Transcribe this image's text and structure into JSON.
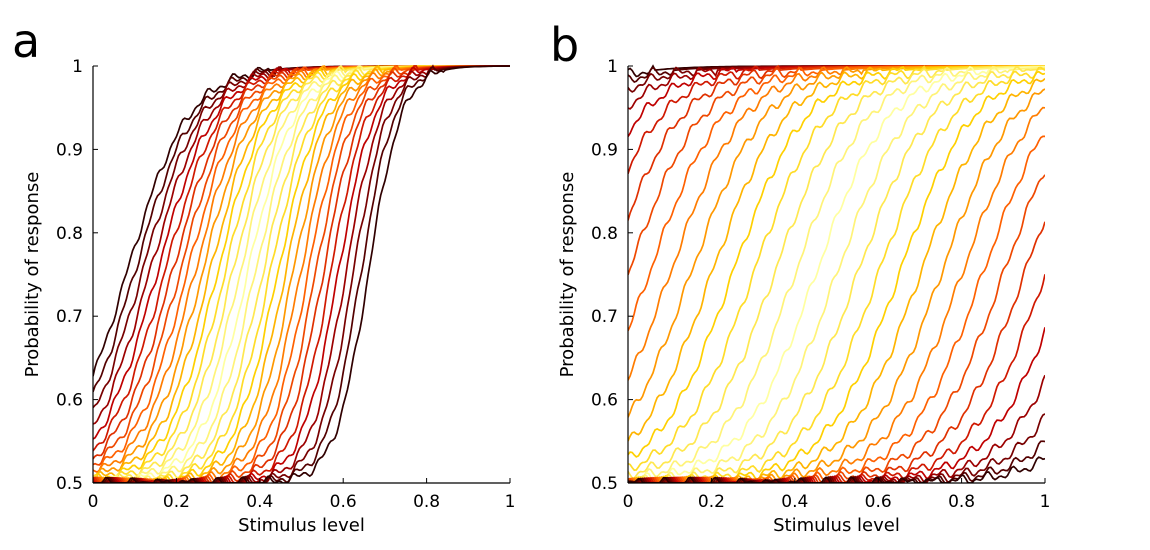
{
  "panels": [
    {
      "letter": "a"
    },
    {
      "letter": "b"
    }
  ],
  "chart_data": [
    {
      "type": "line",
      "panel": "a",
      "xlabel": "Stimulus level",
      "ylabel": "Probability of response",
      "xlim": [
        0,
        1
      ],
      "ylim": [
        0.5,
        1
      ],
      "xticks": [
        "0",
        "0.2",
        "0.4",
        "0.6",
        "0.8",
        "1"
      ],
      "yticks": [
        "0.5",
        "0.6",
        "0.7",
        "0.8",
        "0.9",
        "1"
      ],
      "grid": false,
      "legend": "none",
      "colormap": "hot",
      "colors": [
        "#300000",
        "#c00000",
        "#ff6000",
        "#ffd000",
        "#ffffa0"
      ],
      "series_count": 33,
      "series_midpoints_x50": [
        0.08,
        0.66
      ],
      "series_slopes": [
        0.075,
        0.04
      ],
      "series_y_at_x0_min": 0.5,
      "series_y_at_x0_max": 0.66,
      "series_y_at_x1_min": 0.955,
      "series_y_at_x1_max": 1.0,
      "outermost_series": [
        {
          "x": [
            0,
            0.1,
            0.2,
            0.25,
            0.3
          ],
          "y": [
            0.66,
            0.8,
            0.96,
            0.99,
            1.0
          ]
        },
        {
          "x": [
            0.55,
            0.6,
            0.65,
            0.7,
            0.8,
            0.9,
            1.0
          ],
          "y": [
            0.5,
            0.56,
            0.68,
            0.78,
            0.86,
            0.92,
            0.955
          ]
        }
      ]
    },
    {
      "type": "line",
      "panel": "b",
      "xlabel": "Stimulus level",
      "ylabel": "Probability of response",
      "xlim": [
        0,
        1
      ],
      "ylim": [
        0.5,
        1
      ],
      "xticks": [
        "0",
        "0.2",
        "0.4",
        "0.6",
        "0.8",
        "1"
      ],
      "yticks": [
        "0.5",
        "0.6",
        "0.7",
        "0.8",
        "0.9",
        "1"
      ],
      "grid": false,
      "legend": "none",
      "colormap": "hot",
      "colors": [
        "#300000",
        "#c00000",
        "#ff6000",
        "#ffd000",
        "#ffffa0"
      ],
      "series_count": 33,
      "series_midpoints_x50": [
        -0.35,
        1.25
      ],
      "series_slopes": [
        0.09,
        0.09
      ],
      "series_y_at_x0_min": 0.5,
      "series_y_at_x0_max": 0.995,
      "series_y_at_x1_min": 0.51,
      "series_y_at_x1_max": 1.0,
      "outermost_series": [
        {
          "x": [
            0,
            0.2,
            0.5,
            1.0
          ],
          "y": [
            0.995,
            0.998,
            1.0,
            1.0
          ]
        },
        {
          "x": [
            0.8,
            0.9,
            1.0
          ],
          "y": [
            0.5,
            0.5,
            0.51
          ]
        }
      ]
    }
  ]
}
